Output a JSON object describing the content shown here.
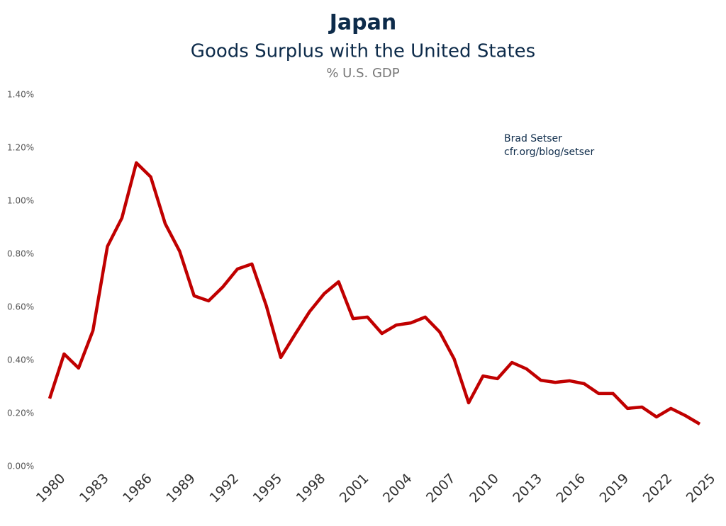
{
  "chart_data": {
    "type": "line",
    "title": "Japan",
    "subtitle": "Goods Surplus with the United States",
    "units_label": "% U.S. GDP",
    "annotations": [
      "Brad Setser",
      "cfr.org/blog/setser"
    ],
    "x": [
      1980,
      1981,
      1982,
      1983,
      1984,
      1985,
      1986,
      1987,
      1988,
      1989,
      1990,
      1991,
      1992,
      1993,
      1994,
      1995,
      1996,
      1997,
      1998,
      1999,
      2000,
      2001,
      2002,
      2003,
      2004,
      2005,
      2006,
      2007,
      2008,
      2009,
      2010,
      2011,
      2012,
      2013,
      2014,
      2015,
      2016,
      2017,
      2018,
      2019,
      2020,
      2021,
      2022,
      2023,
      2024,
      2025
    ],
    "series": [
      {
        "name": "Japan",
        "color": "#c00000",
        "values": [
          0.256,
          0.424,
          0.371,
          0.512,
          0.829,
          0.936,
          1.144,
          1.091,
          0.915,
          0.811,
          0.643,
          0.624,
          0.677,
          0.744,
          0.763,
          0.605,
          0.411,
          0.499,
          0.584,
          0.651,
          0.696,
          0.557,
          0.563,
          0.501,
          0.533,
          0.541,
          0.563,
          0.507,
          0.405,
          0.24,
          0.341,
          0.331,
          0.392,
          0.368,
          0.325,
          0.317,
          0.323,
          0.312,
          0.275,
          0.275,
          0.219,
          0.224,
          0.187,
          0.219,
          0.192,
          0.16
        ]
      }
    ],
    "xlim": [
      1980,
      2025
    ],
    "xticks": [
      1980,
      1983,
      1986,
      1989,
      1992,
      1995,
      1998,
      2001,
      2004,
      2007,
      2010,
      2013,
      2016,
      2019,
      2022,
      2025
    ],
    "ylim": [
      0,
      1.4
    ],
    "yticks": [
      {
        "value": 0,
        "label": "0.00%"
      },
      {
        "value": 0.2,
        "label": "0.20%"
      },
      {
        "value": 0.4,
        "label": "0.40%"
      },
      {
        "value": 0.6,
        "label": "0.60%"
      },
      {
        "value": 0.8,
        "label": "0.80%"
      },
      {
        "value": 1.0,
        "label": "1.00%"
      },
      {
        "value": 1.2,
        "label": "1.20%"
      },
      {
        "value": 1.4,
        "label": "1.40%"
      }
    ],
    "grid": false
  }
}
